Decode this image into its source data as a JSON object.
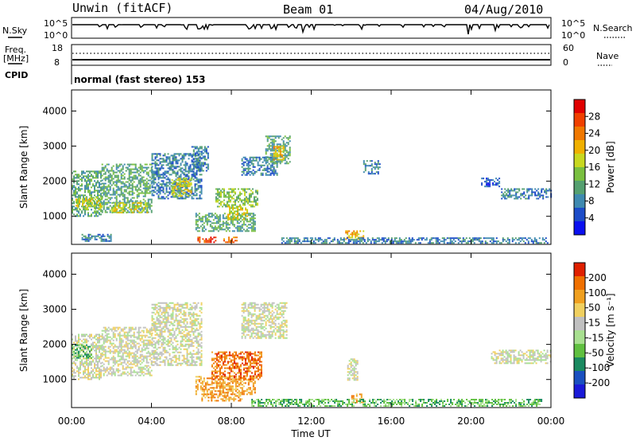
{
  "header": {
    "station": "Unwin (fitACF)",
    "beam": "Beam 01",
    "date": "04/Aug/2010"
  },
  "strips": {
    "nsky_label": "N.Sky",
    "nsky_ticks": [
      "10^5",
      "10^0"
    ],
    "nsearch_label": "N.Search",
    "nsearch_ticks": [
      "10^5",
      "10^0"
    ],
    "freq_label": "Freq.",
    "freq_unit": "[MHz]",
    "freq_ticks": [
      "18",
      "8"
    ],
    "nave_label": "Nave",
    "nave_ticks": [
      "60",
      "0"
    ],
    "cpid_label": "CPID",
    "cpid_text": "normal (fast stereo) 153"
  },
  "chart_data": [
    {
      "type": "heatmap",
      "name": "power",
      "xlabel": "Time UT",
      "ylabel": "Slant Range [km]",
      "xlim": [
        0,
        24
      ],
      "ylim": [
        200,
        4600
      ],
      "x_ticks": [
        "00:00",
        "04:00",
        "08:00",
        "12:00",
        "16:00",
        "20:00",
        "00:00"
      ],
      "y_ticks": [
        "1000",
        "2000",
        "3000",
        "4000"
      ],
      "y_tick_values": [
        1000,
        2000,
        3000,
        4000
      ],
      "colorbar": {
        "label": "Power [dB]",
        "ticks": [
          "4",
          "8",
          "12",
          "16",
          "20",
          "24",
          "28"
        ],
        "colors": [
          "#0a10f0",
          "#1c4cc8",
          "#3f8ab0",
          "#55a070",
          "#7ac040",
          "#c8d820",
          "#f0b000",
          "#f07800",
          "#f04000",
          "#e00000"
        ]
      },
      "regions": [
        {
          "t0": 0.0,
          "t1": 1.5,
          "r0": 1000,
          "r1": 2300,
          "level": 3
        },
        {
          "t0": 0.2,
          "t1": 1.5,
          "r0": 1200,
          "r1": 1550,
          "level": 5
        },
        {
          "t0": 1.5,
          "t1": 4.0,
          "r0": 1100,
          "r1": 2500,
          "level": 3
        },
        {
          "t0": 2.0,
          "t1": 3.8,
          "r0": 1100,
          "r1": 1400,
          "level": 5
        },
        {
          "t0": 4.0,
          "t1": 6.5,
          "r0": 1500,
          "r1": 2800,
          "level": 2
        },
        {
          "t0": 5.0,
          "t1": 6.0,
          "r0": 1600,
          "r1": 2100,
          "level": 5
        },
        {
          "t0": 6.0,
          "t1": 6.8,
          "r0": 2300,
          "r1": 3000,
          "level": 2
        },
        {
          "t0": 6.2,
          "t1": 9.2,
          "r0": 600,
          "r1": 1100,
          "level": 3
        },
        {
          "t0": 7.2,
          "t1": 9.3,
          "r0": 1300,
          "r1": 1800,
          "level": 4
        },
        {
          "t0": 7.8,
          "t1": 8.8,
          "r0": 900,
          "r1": 1300,
          "level": 5
        },
        {
          "t0": 8.5,
          "t1": 10.3,
          "r0": 2200,
          "r1": 2700,
          "level": 2
        },
        {
          "t0": 9.7,
          "t1": 10.9,
          "r0": 2500,
          "r1": 3300,
          "level": 3
        },
        {
          "t0": 10.1,
          "t1": 10.6,
          "r0": 2600,
          "r1": 3000,
          "level": 6
        },
        {
          "t0": 6.3,
          "t1": 7.2,
          "r0": 250,
          "r1": 420,
          "level": 8
        },
        {
          "t0": 7.6,
          "t1": 8.3,
          "r0": 250,
          "r1": 420,
          "level": 7
        },
        {
          "t0": 13.7,
          "t1": 14.6,
          "r0": 350,
          "r1": 600,
          "level": 6
        },
        {
          "t0": 14.6,
          "t1": 15.4,
          "r0": 2200,
          "r1": 2600,
          "level": 2
        },
        {
          "t0": 21.5,
          "t1": 24.0,
          "r0": 1500,
          "r1": 1800,
          "level": 2
        },
        {
          "t0": 20.5,
          "t1": 21.4,
          "r0": 1850,
          "r1": 2100,
          "level": 1
        },
        {
          "t0": 10.5,
          "t1": 23.8,
          "r0": 250,
          "r1": 400,
          "level": 2
        },
        {
          "t0": 0.5,
          "t1": 2.0,
          "r0": 300,
          "r1": 500,
          "level": 2
        }
      ]
    },
    {
      "type": "heatmap",
      "name": "velocity",
      "xlabel": "Time UT",
      "ylabel": "Slant Range [km]",
      "xlim": [
        0,
        24
      ],
      "ylim": [
        200,
        4600
      ],
      "x_ticks": [
        "00:00",
        "04:00",
        "08:00",
        "12:00",
        "16:00",
        "20:00",
        "00:00"
      ],
      "y_ticks": [
        "1000",
        "2000",
        "3000",
        "4000"
      ],
      "y_tick_values": [
        1000,
        2000,
        3000,
        4000
      ],
      "colorbar": {
        "label": "Velocity [m s⁻¹]",
        "ticks": [
          "200",
          "100",
          "50",
          "15",
          "-15",
          "-50",
          "-100",
          "-200"
        ],
        "colors": [
          "#1a1ad8",
          "#1a50c0",
          "#1a8a60",
          "#60c040",
          "#a8e090",
          "#c0c0c0",
          "#f0d060",
          "#f0a020",
          "#f07000",
          "#e02000"
        ]
      },
      "regions": [
        {
          "t0": 0.0,
          "t1": 1.5,
          "r0": 1000,
          "r1": 2300,
          "level": 5
        },
        {
          "t0": 1.5,
          "t1": 4.0,
          "r0": 1100,
          "r1": 2500,
          "level": 5
        },
        {
          "t0": 4.0,
          "t1": 6.5,
          "r0": 1400,
          "r1": 3200,
          "level": 5
        },
        {
          "t0": 0.0,
          "t1": 1.0,
          "r0": 1600,
          "r1": 2000,
          "level": 3
        },
        {
          "t0": 6.2,
          "t1": 9.2,
          "r0": 600,
          "r1": 1100,
          "level": 7
        },
        {
          "t0": 7.0,
          "t1": 9.5,
          "r0": 1000,
          "r1": 1800,
          "level": 8
        },
        {
          "t0": 6.5,
          "t1": 8.5,
          "r0": 400,
          "r1": 600,
          "level": 7
        },
        {
          "t0": 8.5,
          "t1": 10.8,
          "r0": 2200,
          "r1": 3200,
          "level": 5
        },
        {
          "t0": 13.8,
          "t1": 14.3,
          "r0": 1000,
          "r1": 1600,
          "level": 5
        },
        {
          "t0": 14.0,
          "t1": 14.6,
          "r0": 350,
          "r1": 600,
          "level": 7
        },
        {
          "t0": 21.0,
          "t1": 24.0,
          "r0": 1450,
          "r1": 1850,
          "level": 5
        },
        {
          "t0": 9.0,
          "t1": 23.5,
          "r0": 250,
          "r1": 450,
          "level": 3
        }
      ]
    }
  ]
}
